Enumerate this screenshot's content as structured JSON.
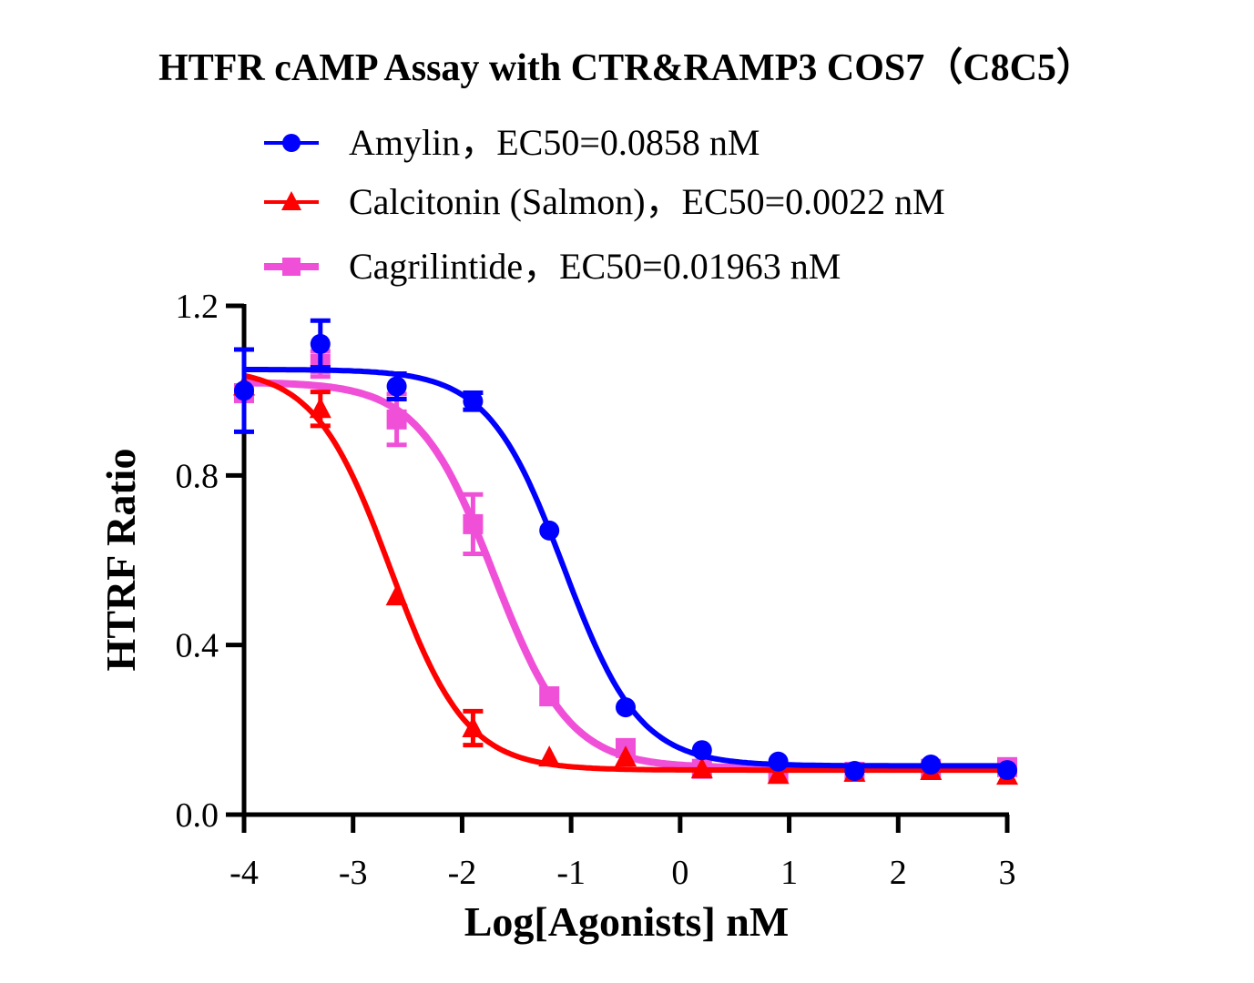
{
  "chart_data": {
    "type": "line",
    "title": "HTFR cAMP Assay with CTR&RAMP3 COS7（C8C5）",
    "xlabel": "Log[Agonists] nM",
    "ylabel": "HTRF Ratio",
    "xlim": [
      -4,
      3
    ],
    "ylim": [
      0,
      1.2
    ],
    "xticks": [
      "-4",
      "-3",
      "-2",
      "-1",
      "0",
      "1",
      "2",
      "3"
    ],
    "yticks": [
      "0.0",
      "0.4",
      "0.8",
      "1.2"
    ],
    "grid": false,
    "legend_position": "top",
    "x": [
      -4,
      -3.3,
      -2.6,
      -1.9,
      -1.2,
      -0.5,
      0.2,
      0.9,
      1.6,
      2.3,
      3
    ],
    "series": [
      {
        "name": "Amylin，EC50=0.0858 nM",
        "color": "#0000ff",
        "marker": "circle",
        "values": [
          1.0,
          1.11,
          1.01,
          0.975,
          0.67,
          0.253,
          0.152,
          0.125,
          0.103,
          0.118,
          0.105
        ],
        "errors": [
          0.097,
          0.055,
          0.03,
          0.02,
          0,
          0,
          0,
          0,
          0,
          0,
          0
        ],
        "fit": {
          "top": 1.05,
          "bottom": 0.115,
          "logEC50": -1.067,
          "hill": 1.25
        }
      },
      {
        "name": "Calcitonin (Salmon)，EC50=0.0022 nM",
        "color": "#ff0000",
        "marker": "triangle",
        "values": [
          1.01,
          0.957,
          0.515,
          0.204,
          0.135,
          0.135,
          0.107,
          0.094,
          0.099,
          0.103,
          0.092
        ],
        "errors": [
          0,
          0.04,
          0,
          0.04,
          0,
          0,
          0,
          0,
          0,
          0,
          0
        ],
        "fit": {
          "top": 1.055,
          "bottom": 0.105,
          "logEC50": -2.658,
          "hill": 1.25
        }
      },
      {
        "name": "Cagrilintide，EC50=0.01963 nM",
        "color": "#f050d8",
        "marker": "square",
        "values": [
          0.994,
          1.063,
          0.932,
          0.685,
          0.279,
          0.157,
          0.108,
          0.101,
          0.101,
          0.108,
          0.112
        ],
        "errors": [
          0,
          0.03,
          0.06,
          0.07,
          0,
          0,
          0,
          0,
          0,
          0,
          0
        ],
        "fit": {
          "top": 1.02,
          "bottom": 0.11,
          "logEC50": -1.707,
          "hill": 1.25
        }
      }
    ]
  }
}
